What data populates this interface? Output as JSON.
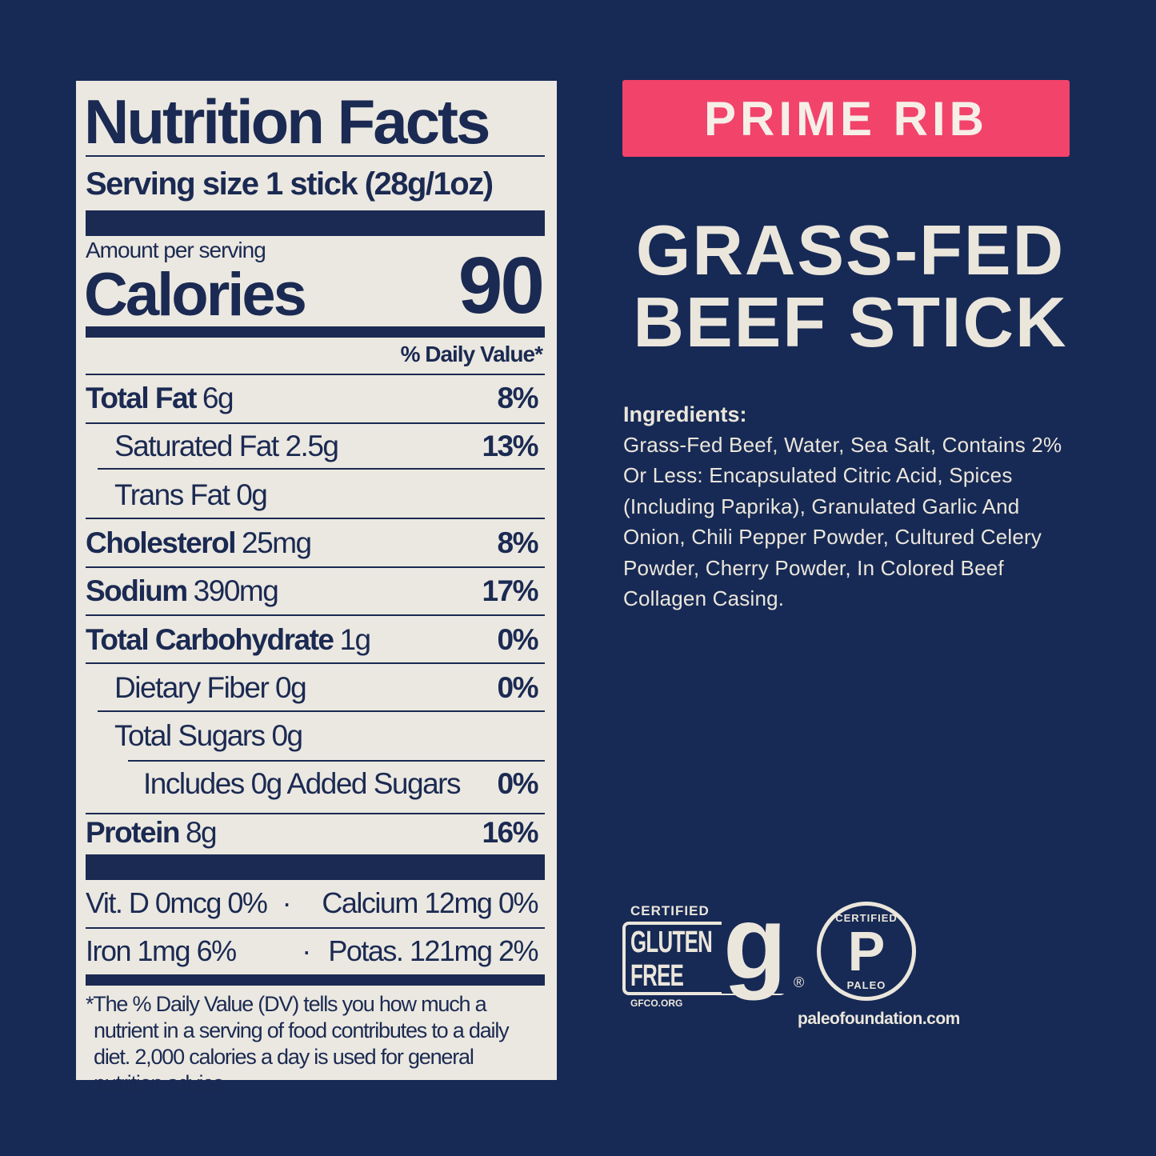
{
  "label": {
    "title": "Nutrition Facts",
    "serving": "Serving size 1 stick (28g/1oz)",
    "amount_per_serving": "Amount per serving",
    "calories_label": "Calories",
    "calories_value": "90",
    "dv_header": "% Daily Value*",
    "rows": [
      {
        "name": "Total Fat",
        "amount": "6g",
        "dv": "8%",
        "bold": true,
        "indent": 0
      },
      {
        "name": "Saturated Fat 2.5g",
        "amount": "",
        "dv": "13%",
        "bold": false,
        "indent": 1
      },
      {
        "name": "Trans Fat 0g",
        "amount": "",
        "dv": "",
        "bold": false,
        "indent": 1
      },
      {
        "name": "Cholesterol",
        "amount": "25mg",
        "dv": "8%",
        "bold": true,
        "indent": 0
      },
      {
        "name": "Sodium",
        "amount": "390mg",
        "dv": "17%",
        "bold": true,
        "indent": 0
      },
      {
        "name": "Total Carbohydrate",
        "amount": "1g",
        "dv": "0%",
        "bold": true,
        "indent": 0
      },
      {
        "name": "Dietary Fiber 0g",
        "amount": "",
        "dv": "0%",
        "bold": false,
        "indent": 1
      },
      {
        "name": "Total Sugars 0g",
        "amount": "",
        "dv": "",
        "bold": false,
        "indent": 1
      },
      {
        "name": "Includes 0g Added Sugars",
        "amount": "",
        "dv": "0%",
        "bold": false,
        "indent": 2
      },
      {
        "name": "Protein",
        "amount": "8g",
        "dv": "16%",
        "bold": true,
        "indent": 0
      }
    ],
    "vitamins": [
      {
        "left": "Vit. D 0mcg 0%",
        "right": "Calcium 12mg 0%"
      },
      {
        "left": "Iron 1mg 6%",
        "right": "Potas. 121mg 2%"
      }
    ],
    "separator": "·",
    "footnote": "*The % Daily Value (DV) tells you how much a nutrient in a serving of food contributes to a daily diet. 2,000 calories a day is used for general nutrition advice."
  },
  "flavor": "PRIME RIB",
  "product_line1": "GRASS-FED",
  "product_line2": "BEEF STICK",
  "ingredients_label": "Ingredients:",
  "ingredients": "Grass-Fed Beef, Water, Sea Salt, Contains 2% Or Less: Encapsulated Citric Acid, Spices (Including Paprika), Granulated Garlic And Onion, Chili Pepper Powder, Cultured Celery Powder, Cherry Powder, In Colored Beef Collagen Casing.",
  "badges": {
    "gluten_free": {
      "top": "CERTIFIED",
      "line1": "GLUTEN",
      "line2": "FREE",
      "url": "GFCO.ORG",
      "mark": "®"
    },
    "paleo": {
      "top": "CERTIFIED",
      "letter": "P",
      "bottom": "PALEO",
      "url": "paleofoundation.com"
    }
  },
  "colors": {
    "background": "#172a55",
    "panel": "#ebe8e1",
    "accent": "#f2436b",
    "text": "#1b2a52"
  }
}
